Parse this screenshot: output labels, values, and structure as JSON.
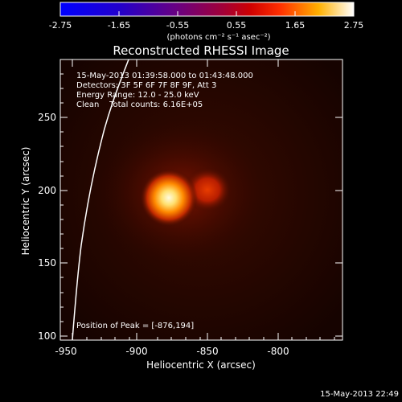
{
  "colorbar": {
    "ticks": [
      "-2.75",
      "-1.65",
      "-0.55",
      "0.55",
      "1.65",
      "2.75"
    ],
    "units_label": "(photons cm⁻² s⁻¹ asec⁻²)"
  },
  "plot": {
    "title": "Reconstructed RHESSI Image",
    "info_lines": [
      "15-May-2013 01:39:58.000 to 01:43:48.000",
      "Detectors: 3F 5F 6F 7F 8F 9F, Att 3",
      "Energy Range: 12.0 - 25.0 keV",
      "Clean    Total counts: 6.16E+05"
    ],
    "peak_text": "Position of Peak = [-876,194]",
    "xlabel": "Heliocentric X (arcsec)",
    "ylabel": "Heliocentric Y (arcsec)",
    "xticks": [
      "-950",
      "-900",
      "-850",
      "-800"
    ],
    "yticks": [
      "100",
      "150",
      "200",
      "250"
    ]
  },
  "footer": {
    "timestamp": "15-May-2013 22:49"
  },
  "colors": {
    "background": "#000000",
    "heat_dark": "#2a0500",
    "heat_mid": "#b01e00",
    "heat_bright": "#fff4b0"
  }
}
